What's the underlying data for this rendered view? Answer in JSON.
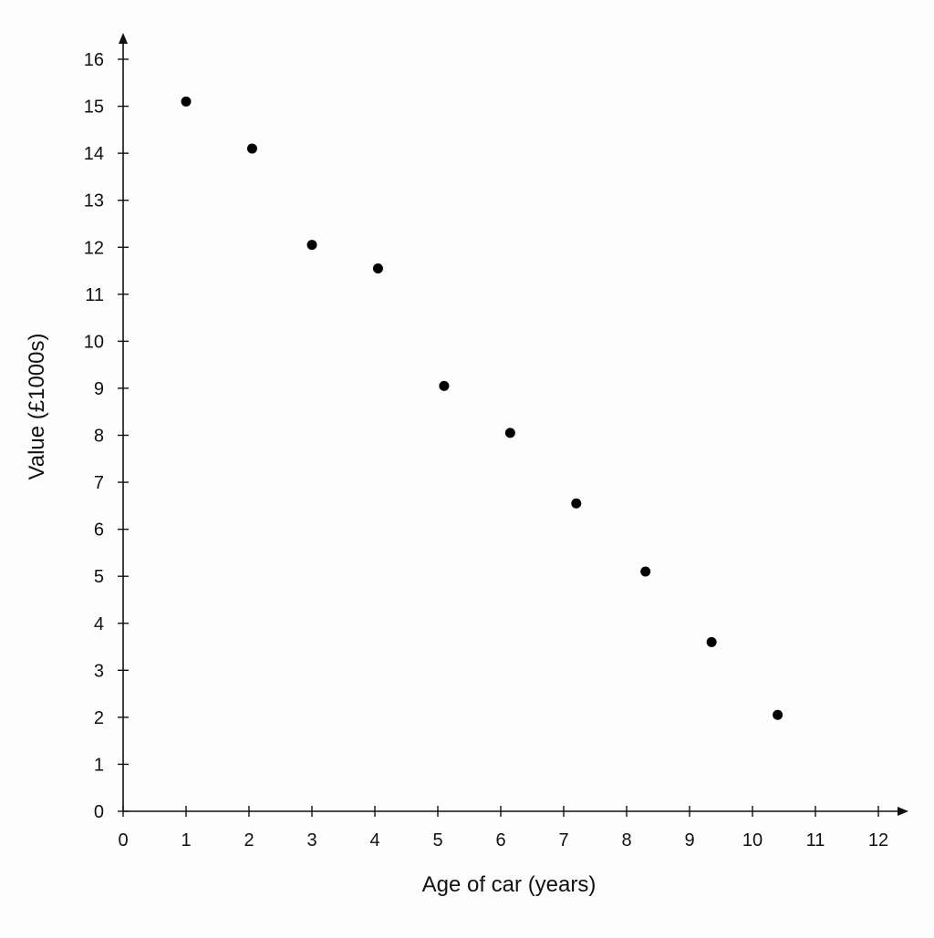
{
  "chart_data": {
    "type": "scatter",
    "title": "",
    "xlabel": "Age of car (years)",
    "ylabel": "Value (£1000s)",
    "xlim": [
      0,
      12
    ],
    "ylim": [
      0,
      16
    ],
    "x_ticks": [
      0,
      1,
      2,
      3,
      4,
      5,
      6,
      7,
      8,
      9,
      10,
      11,
      12
    ],
    "y_ticks": [
      0,
      1,
      2,
      3,
      4,
      5,
      6,
      7,
      8,
      9,
      10,
      11,
      12,
      13,
      14,
      15,
      16
    ],
    "grid": false,
    "legend": "none",
    "marker_color": "#000000",
    "series": [
      {
        "x": [
          1.0,
          2.05,
          3.0,
          4.05,
          5.1,
          6.15,
          7.2,
          8.3,
          9.35,
          10.4
        ],
        "y": [
          15.1,
          14.1,
          12.05,
          11.55,
          9.05,
          8.05,
          6.55,
          5.1,
          3.6,
          2.05
        ]
      }
    ]
  }
}
